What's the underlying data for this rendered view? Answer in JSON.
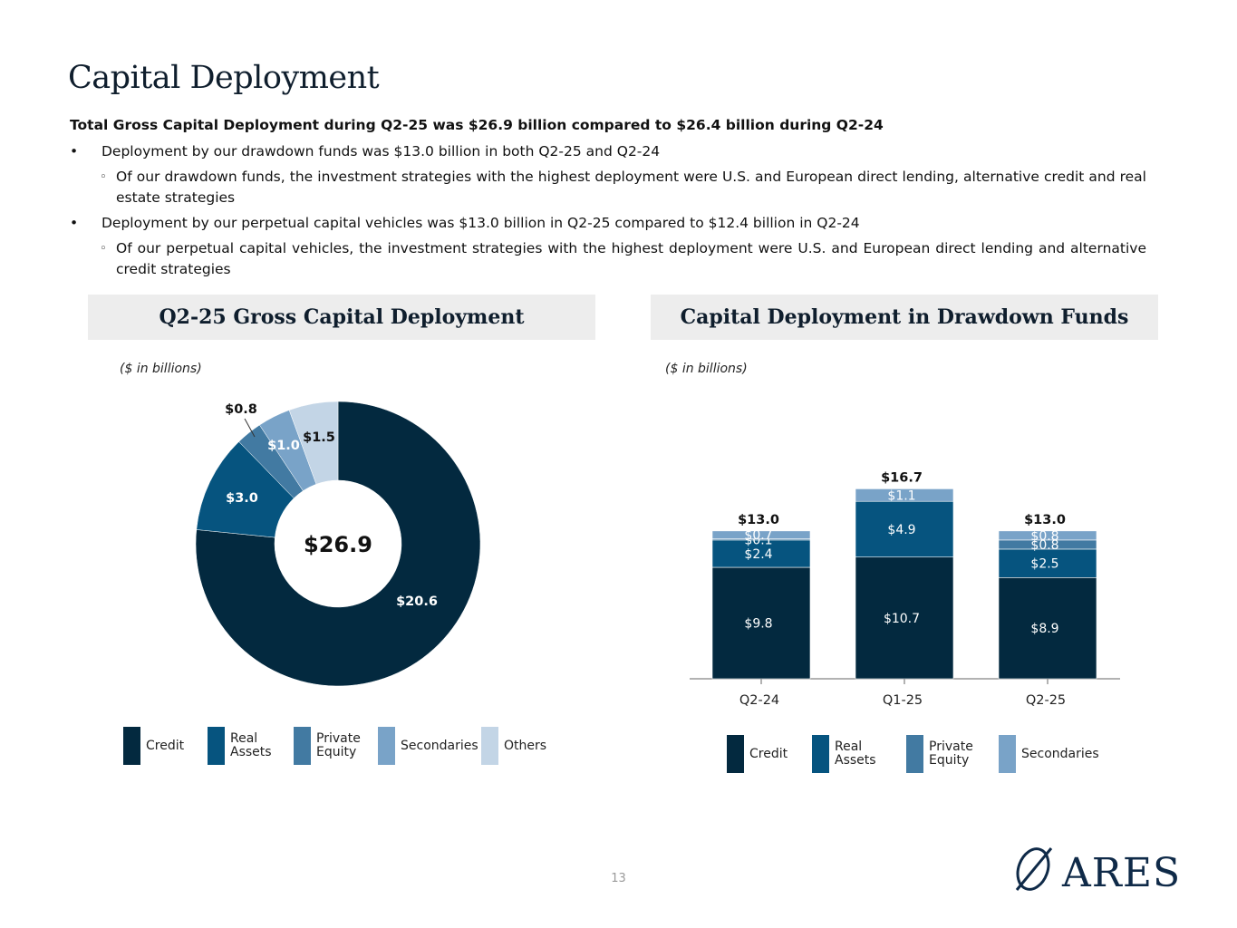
{
  "title": "Capital Deployment",
  "headline": "Total Gross Capital Deployment during Q2-25 was $26.9 billion compared to $26.4 billion during Q2-24",
  "bullets": [
    {
      "text": "Deployment by our drawdown funds was $13.0 billion in both Q2-25 and Q2-24",
      "sub": "Of our drawdown funds, the investment strategies with the highest deployment were U.S. and European direct lending, alternative credit and real estate strategies"
    },
    {
      "text": "Deployment by our perpetual capital vehicles was $13.0 billion in Q2-25 compared to $12.4 billion in Q2-24",
      "sub": "Of our perpetual capital vehicles, the investment strategies with the highest deployment were U.S. and European direct lending and alternative credit strategies"
    }
  ],
  "colors": {
    "credit": "#03293f",
    "real_assets": "#06547f",
    "private_equity": "#427aa2",
    "secondaries": "#79a3c8",
    "others": "#c3d5e6"
  },
  "chart_data": [
    {
      "type": "pie",
      "title": "Q2-25 Gross Capital Deployment",
      "units": "($ in billions)",
      "center_label": "$26.9",
      "categories": [
        "Credit",
        "Real Assets",
        "Private Equity",
        "Secondaries",
        "Others"
      ],
      "values": [
        20.6,
        3.0,
        0.8,
        1.0,
        1.5
      ],
      "data_labels": [
        "$20.6",
        "$3.0",
        "$0.8",
        "$1.0",
        "$1.5"
      ],
      "legend": [
        {
          "label": "Credit",
          "color": "#03293f"
        },
        {
          "label": "Real Assets",
          "color": "#06547f"
        },
        {
          "label": "Private Equity",
          "color": "#427aa2"
        },
        {
          "label": "Secondaries",
          "color": "#79a3c8"
        },
        {
          "label": "Others",
          "color": "#c3d5e6"
        }
      ]
    },
    {
      "type": "bar",
      "stacked": true,
      "title": "Capital Deployment in Drawdown Funds",
      "units": "($ in billions)",
      "categories": [
        "Q2-24",
        "Q1-25",
        "Q2-25"
      ],
      "series": [
        {
          "name": "Credit",
          "values": [
            9.8,
            10.7,
            8.9
          ],
          "labels": [
            "$9.8",
            "$10.7",
            "$8.9"
          ],
          "color": "#03293f"
        },
        {
          "name": "Real Assets",
          "values": [
            2.4,
            4.9,
            2.5
          ],
          "labels": [
            "$2.4",
            "$4.9",
            "$2.5"
          ],
          "color": "#06547f"
        },
        {
          "name": "Private Equity",
          "values": [
            0.1,
            0.0,
            0.8
          ],
          "labels": [
            "$0.1",
            "",
            "$0.8"
          ],
          "color": "#427aa2"
        },
        {
          "name": "Secondaries",
          "values": [
            0.7,
            1.1,
            0.8
          ],
          "labels": [
            "$0.7",
            "$1.1",
            "$0.8"
          ],
          "color": "#79a3c8"
        }
      ],
      "totals": [
        "$13.0",
        "$16.7",
        "$13.0"
      ],
      "legend": [
        {
          "label": "Credit",
          "color": "#03293f"
        },
        {
          "label": "Real Assets",
          "color": "#06547f"
        },
        {
          "label": "Private Equity",
          "color": "#427aa2"
        },
        {
          "label": "Secondaries",
          "color": "#79a3c8"
        }
      ]
    }
  ],
  "page_number": "13",
  "logo_text": "ARES"
}
